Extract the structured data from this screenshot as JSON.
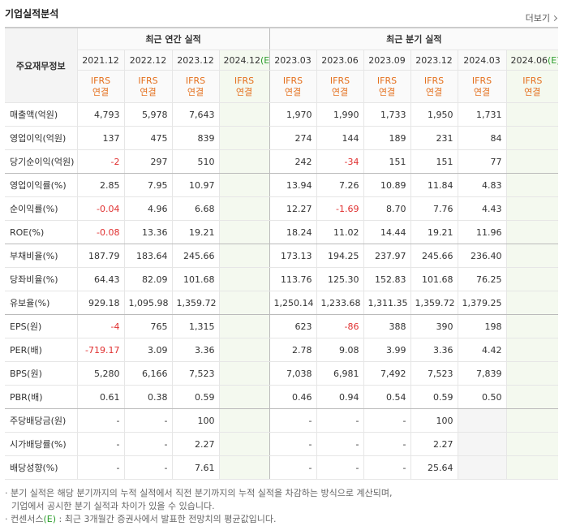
{
  "header": {
    "title": "기업실적분석",
    "more": "더보기"
  },
  "table": {
    "corner": "주요재무정보",
    "annual_title": "최근 연간 실적",
    "quarterly_title": "최근 분기 실적",
    "annual_columns": [
      {
        "date": "2021.12",
        "basis": "IFRS",
        "consolidation": "연결"
      },
      {
        "date": "2022.12",
        "basis": "IFRS",
        "consolidation": "연결"
      },
      {
        "date": "2023.12",
        "basis": "IFRS",
        "consolidation": "연결"
      },
      {
        "date": "2024.12",
        "estimate": "(E)",
        "basis": "IFRS",
        "consolidation": "연결"
      }
    ],
    "quarterly_columns": [
      {
        "date": "2023.03",
        "basis": "IFRS",
        "consolidation": "연결"
      },
      {
        "date": "2023.06",
        "basis": "IFRS",
        "consolidation": "연결"
      },
      {
        "date": "2023.09",
        "basis": "IFRS",
        "consolidation": "연결"
      },
      {
        "date": "2023.12",
        "basis": "IFRS",
        "consolidation": "연결"
      },
      {
        "date": "2024.03",
        "basis": "IFRS",
        "consolidation": "연결"
      },
      {
        "date": "2024.06",
        "estimate": "(E)",
        "basis": "IFRS",
        "consolidation": "연결"
      }
    ],
    "rows": [
      {
        "label": "매출액(억원)",
        "annual": [
          "4,793",
          "5,978",
          "7,643",
          null
        ],
        "quarterly": [
          "1,970",
          "1,990",
          "1,733",
          "1,950",
          "1,731",
          null
        ]
      },
      {
        "label": "영업이익(억원)",
        "annual": [
          "137",
          "475",
          "839",
          null
        ],
        "quarterly": [
          "274",
          "144",
          "189",
          "231",
          "84",
          null
        ]
      },
      {
        "label": "당기순이익(억원)",
        "annual": [
          "-2",
          "297",
          "510",
          null
        ],
        "quarterly": [
          "242",
          "-34",
          "151",
          "151",
          "77",
          null
        ]
      },
      {
        "label": "영업이익률(%)",
        "annual": [
          "2.85",
          "7.95",
          "10.97",
          null
        ],
        "quarterly": [
          "13.94",
          "7.26",
          "10.89",
          "11.84",
          "4.83",
          null
        ]
      },
      {
        "label": "순이익률(%)",
        "annual": [
          "-0.04",
          "4.96",
          "6.68",
          null
        ],
        "quarterly": [
          "12.27",
          "-1.69",
          "8.70",
          "7.76",
          "4.43",
          null
        ]
      },
      {
        "label": "ROE(%)",
        "annual": [
          "-0.08",
          "13.36",
          "19.21",
          null
        ],
        "quarterly": [
          "18.24",
          "11.02",
          "14.44",
          "19.21",
          "11.96",
          null
        ]
      },
      {
        "label": "부채비율(%)",
        "annual": [
          "187.79",
          "183.64",
          "245.66",
          null
        ],
        "quarterly": [
          "173.13",
          "194.25",
          "237.97",
          "245.66",
          "236.40",
          null
        ]
      },
      {
        "label": "당좌비율(%)",
        "annual": [
          "64.43",
          "82.09",
          "101.68",
          null
        ],
        "quarterly": [
          "113.76",
          "125.30",
          "152.83",
          "101.68",
          "76.25",
          null
        ]
      },
      {
        "label": "유보율(%)",
        "annual": [
          "929.18",
          "1,095.98",
          "1,359.72",
          null
        ],
        "quarterly": [
          "1,250.14",
          "1,233.68",
          "1,311.35",
          "1,359.72",
          "1,379.25",
          null
        ]
      },
      {
        "label": "EPS(원)",
        "annual": [
          "-4",
          "765",
          "1,315",
          null
        ],
        "quarterly": [
          "623",
          "-86",
          "388",
          "390",
          "198",
          null
        ]
      },
      {
        "label": "PER(배)",
        "annual": [
          "-719.17",
          "3.09",
          "3.36",
          null
        ],
        "quarterly": [
          "2.78",
          "9.08",
          "3.99",
          "3.36",
          "4.42",
          null
        ]
      },
      {
        "label": "BPS(원)",
        "annual": [
          "5,280",
          "6,166",
          "7,523",
          null
        ],
        "quarterly": [
          "7,038",
          "6,981",
          "7,492",
          "7,523",
          "7,839",
          null
        ]
      },
      {
        "label": "PBR(배)",
        "annual": [
          "0.61",
          "0.38",
          "0.59",
          null
        ],
        "quarterly": [
          "0.46",
          "0.94",
          "0.54",
          "0.59",
          "0.50",
          null
        ]
      },
      {
        "label": "주당배당금(원)",
        "annual": [
          "-",
          "-",
          "100",
          null
        ],
        "quarterly": [
          "-",
          "-",
          "-",
          "100",
          null,
          null
        ]
      },
      {
        "label": "시가배당률(%)",
        "annual": [
          "-",
          "-",
          "2.27",
          null
        ],
        "quarterly": [
          "-",
          "-",
          "-",
          "2.27",
          null,
          null
        ]
      },
      {
        "label": "배당성향(%)",
        "annual": [
          "-",
          "-",
          "7.61",
          null
        ],
        "quarterly": [
          "-",
          "-",
          "-",
          "25.64",
          null,
          null
        ]
      }
    ]
  },
  "notes": [
    {
      "lines": [
        "· 분기 실적은 해당 분기까지의 누적 실적에서 직전 분기까지의 누적 실적을 차감하는 방식으로 계산되며,",
        "기업에서 공시한 분기 실적과 차이가 있을 수 있습니다."
      ]
    },
    {
      "lead": "· 컨센서스",
      "estimate": "(E)",
      "rest": " : 최근 3개월간 증권사에서 발표한 전망치의 평균값입니다."
    }
  ]
}
